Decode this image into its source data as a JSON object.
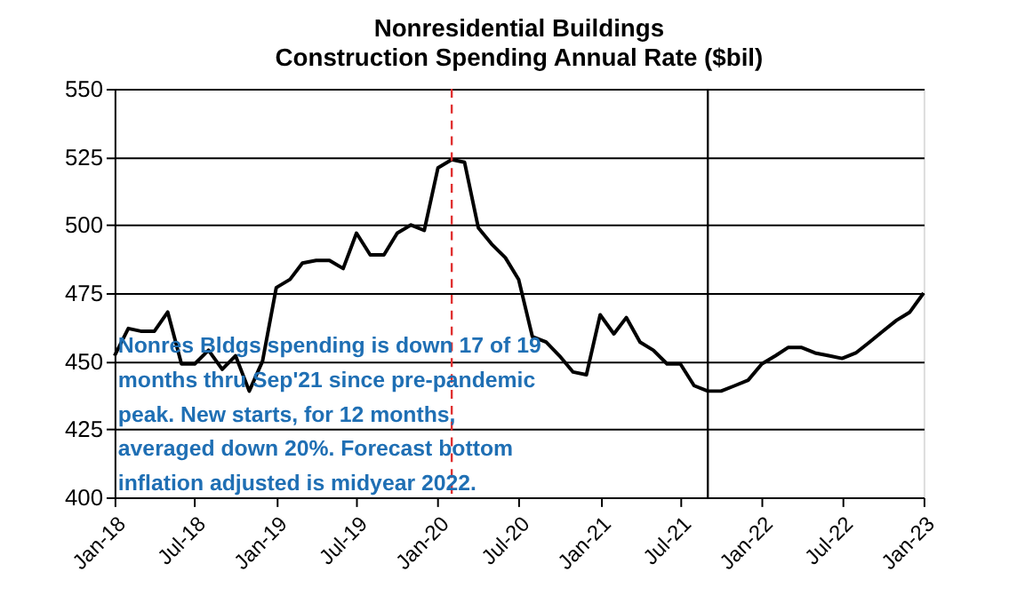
{
  "chart_data": {
    "type": "line",
    "title": "Nonresidential Buildings\nConstruction Spending Annual Rate ($bil)",
    "x": [
      "2018-01",
      "2018-02",
      "2018-03",
      "2018-04",
      "2018-05",
      "2018-06",
      "2018-07",
      "2018-08",
      "2018-09",
      "2018-10",
      "2018-11",
      "2018-12",
      "2019-01",
      "2019-02",
      "2019-03",
      "2019-04",
      "2019-05",
      "2019-06",
      "2019-07",
      "2019-08",
      "2019-09",
      "2019-10",
      "2019-11",
      "2019-12",
      "2020-01",
      "2020-02",
      "2020-03",
      "2020-04",
      "2020-05",
      "2020-06",
      "2020-07",
      "2020-08",
      "2020-09",
      "2020-10",
      "2020-11",
      "2020-12",
      "2021-01",
      "2021-02",
      "2021-03",
      "2021-04",
      "2021-05",
      "2021-06",
      "2021-07",
      "2021-08",
      "2021-09",
      "2021-10",
      "2021-11",
      "2021-12",
      "2022-01",
      "2022-02",
      "2022-03",
      "2022-04",
      "2022-05",
      "2022-06",
      "2022-07",
      "2022-08",
      "2022-09",
      "2022-10",
      "2022-11",
      "2022-12",
      "2023-01"
    ],
    "series": [
      {
        "color": "#000000",
        "values": [
          452,
          462,
          461,
          461,
          468,
          449,
          449,
          454,
          447,
          452,
          439,
          450,
          477,
          480,
          486,
          487,
          487,
          484,
          497,
          489,
          489,
          497,
          500,
          498,
          521,
          524,
          523,
          499,
          493,
          488,
          480,
          459,
          457,
          452,
          446,
          445,
          467,
          460,
          466,
          457,
          454,
          449,
          449,
          441,
          439,
          439,
          441,
          443,
          449,
          452,
          455,
          455,
          453,
          452,
          451,
          453,
          457,
          461,
          465,
          468,
          475
        ]
      }
    ],
    "xlim": [
      "2018-01",
      "2023-01"
    ],
    "xticks": [
      {
        "value": "2018-01",
        "label": "Jan-18"
      },
      {
        "value": "2018-07",
        "label": "Jul-18"
      },
      {
        "value": "2019-01",
        "label": "Jan-19"
      },
      {
        "value": "2019-07",
        "label": "Jul-19"
      },
      {
        "value": "2020-01",
        "label": "Jan-20"
      },
      {
        "value": "2020-07",
        "label": "Jul-20"
      },
      {
        "value": "2021-01",
        "label": "Jan-21"
      },
      {
        "value": "2021-07",
        "label": "Jul-21"
      },
      {
        "value": "2022-01",
        "label": "Jan-22"
      },
      {
        "value": "2022-07",
        "label": "Jul-22"
      },
      {
        "value": "2023-01",
        "label": "Jan-23"
      }
    ],
    "ylim": [
      400,
      550
    ],
    "yticks": [
      400,
      425,
      450,
      475,
      500,
      525,
      550
    ],
    "grid": "y",
    "marker": "none",
    "line_style": "solid",
    "ref_lines": [
      {
        "axis": "x",
        "value": "2020-02",
        "color": "#e03030",
        "line_style": "dashed"
      },
      {
        "axis": "x",
        "value": "2021-09",
        "color": "#000000",
        "line_style": "solid"
      }
    ],
    "annotations": [
      "Nonres Bldgs spending is down 17 of 19\nmonths thru Sep'21 since pre-pandemic\npeak. New starts, for 12 months,\naveraged down 20%. Forecast bottom\ninflation adjusted is midyear 2022."
    ]
  }
}
